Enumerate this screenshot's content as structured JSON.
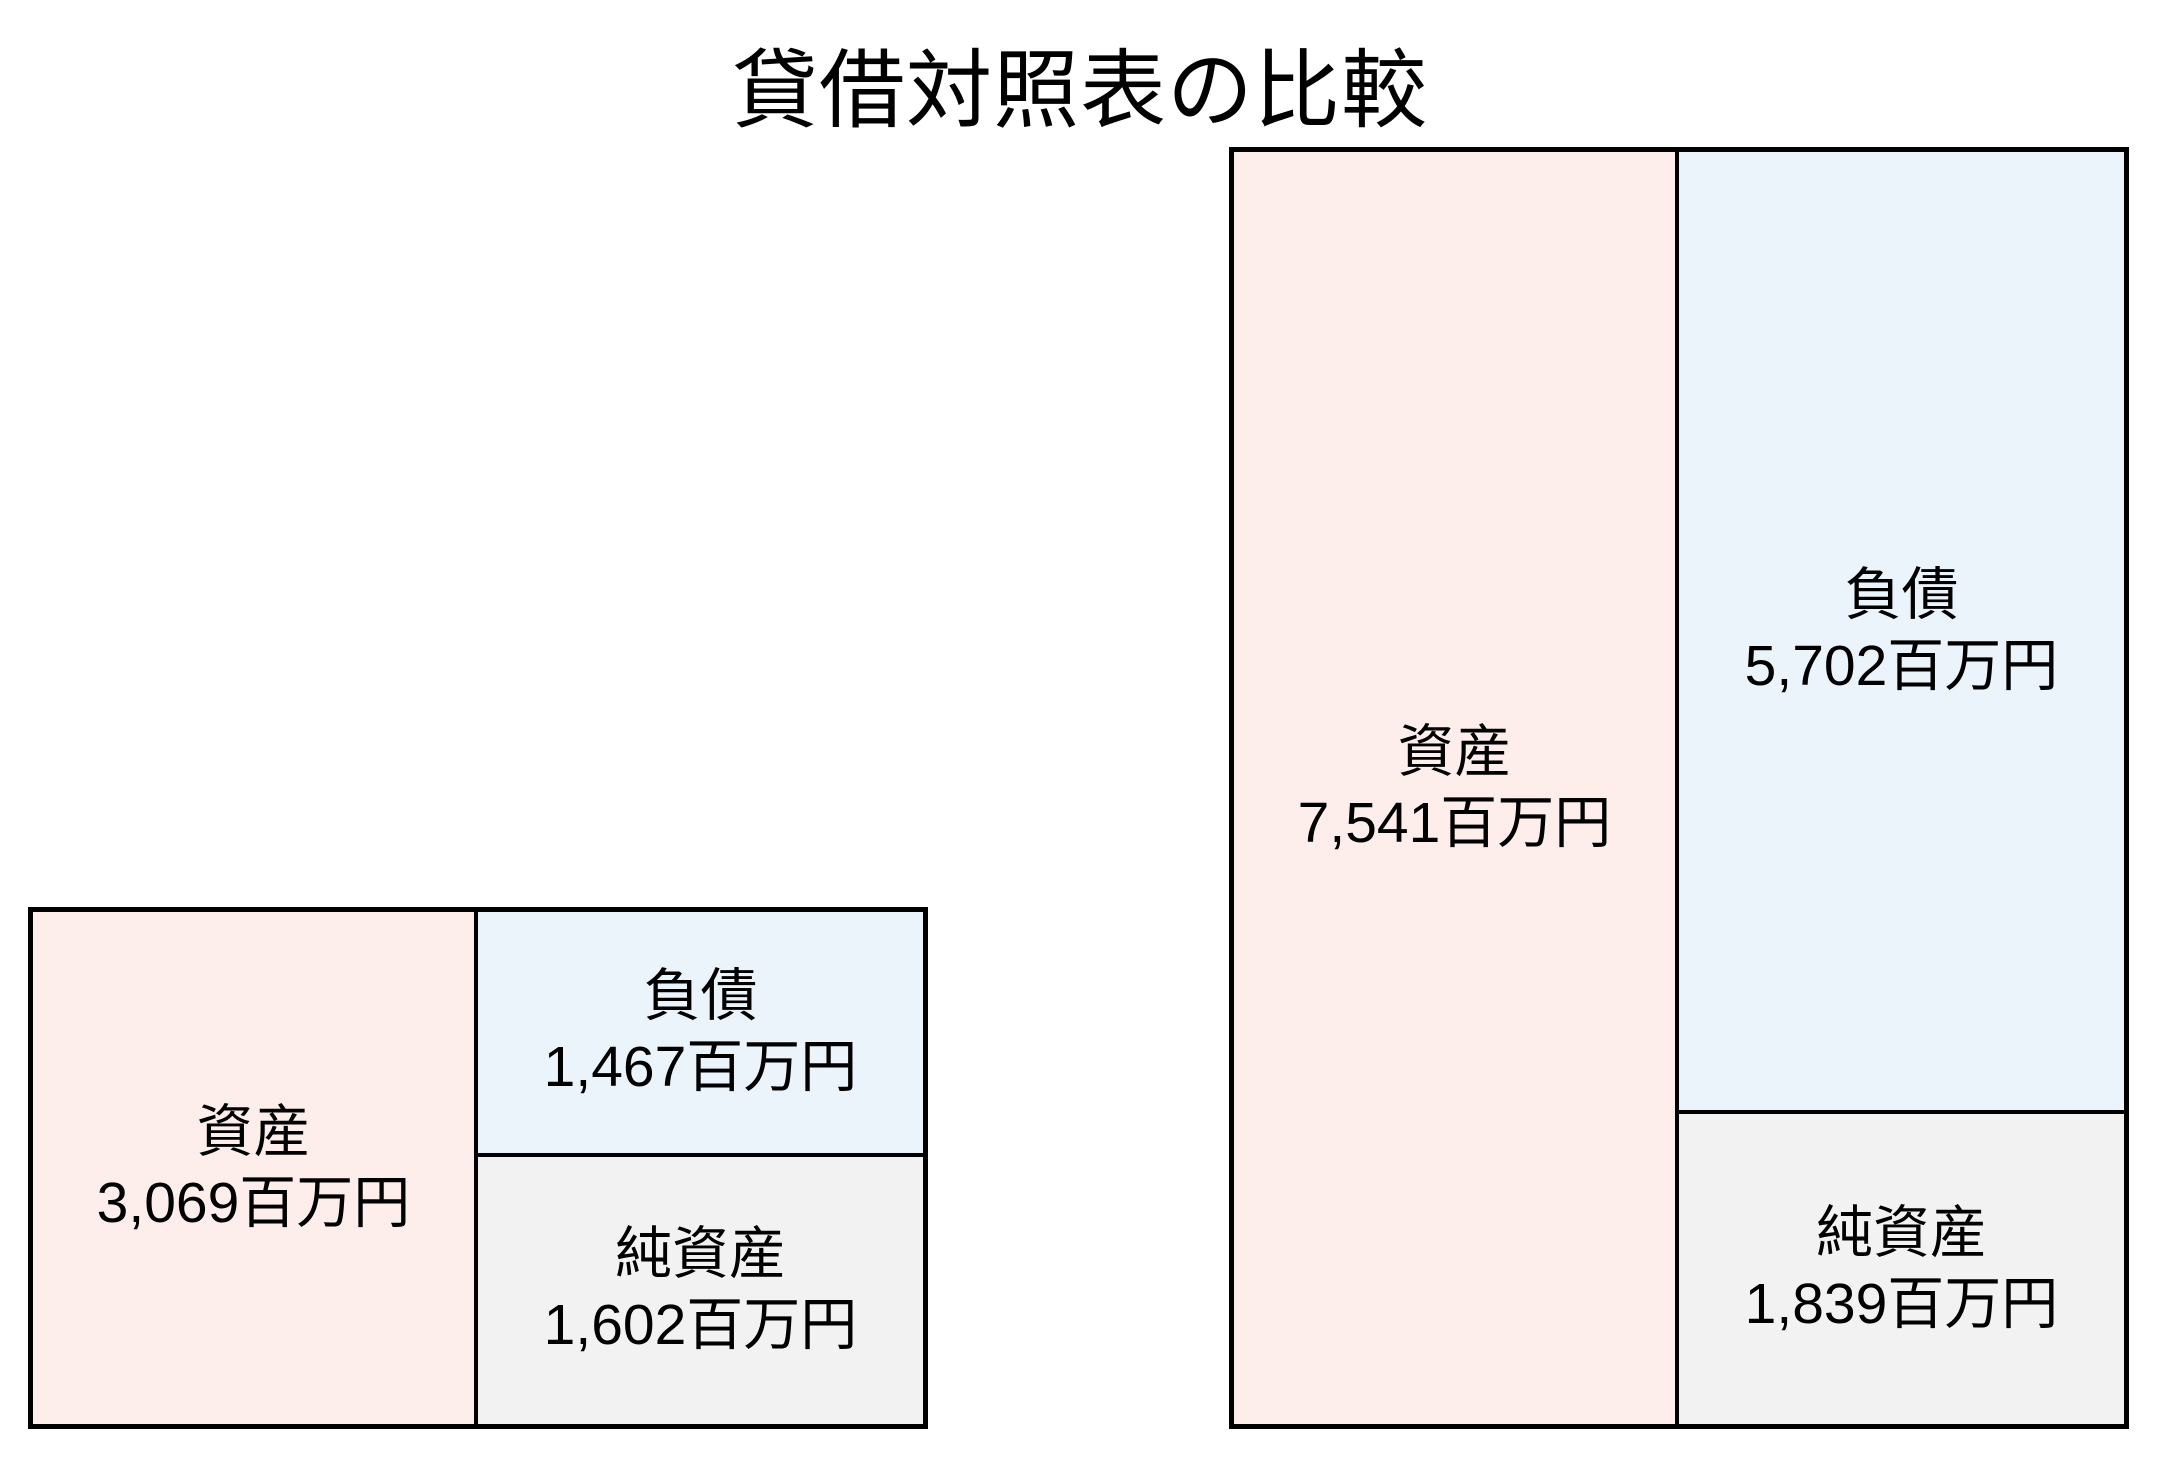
{
  "title": "貸借対照表の比較",
  "colors": {
    "background": "#ffffff",
    "border": "#000000",
    "text": "#000000",
    "assets_fill": "#fdedeb",
    "liabilities_fill": "#ebf3fb",
    "net_assets_fill": "#f2f2f2"
  },
  "sheets": [
    {
      "assets_label": "資産",
      "assets_amount": "3,069百万円",
      "liabilities_label": "負債",
      "liabilities_amount": "1,467百万円",
      "net_assets_label": "純資産",
      "net_assets_amount": "1,602百万円",
      "assets_value": 3069,
      "liabilities_value": 1467,
      "net_assets_value": 1602
    },
    {
      "assets_label": "資産",
      "assets_amount": "7,541百万円",
      "liabilities_label": "負債",
      "liabilities_amount": "5,702百万円",
      "net_assets_label": "純資産",
      "net_assets_amount": "1,839百万円",
      "assets_value": 7541,
      "liabilities_value": 5702,
      "net_assets_value": 1839
    }
  ],
  "chart_data": {
    "type": "bar",
    "title": "貸借対照表の比較",
    "unit": "百万円",
    "categories": [
      "left",
      "right"
    ],
    "series": [
      {
        "name": "資産",
        "values": [
          3069,
          7541
        ]
      },
      {
        "name": "負債",
        "values": [
          1467,
          5702
        ]
      },
      {
        "name": "純資産",
        "values": [
          1602,
          1839
        ]
      }
    ],
    "layout": "proportional balance-sheet boxes; assets column on the left half, liabilities stacked above net assets on the right half; box heights proportional to amounts; grid off; no axes; title top center"
  }
}
